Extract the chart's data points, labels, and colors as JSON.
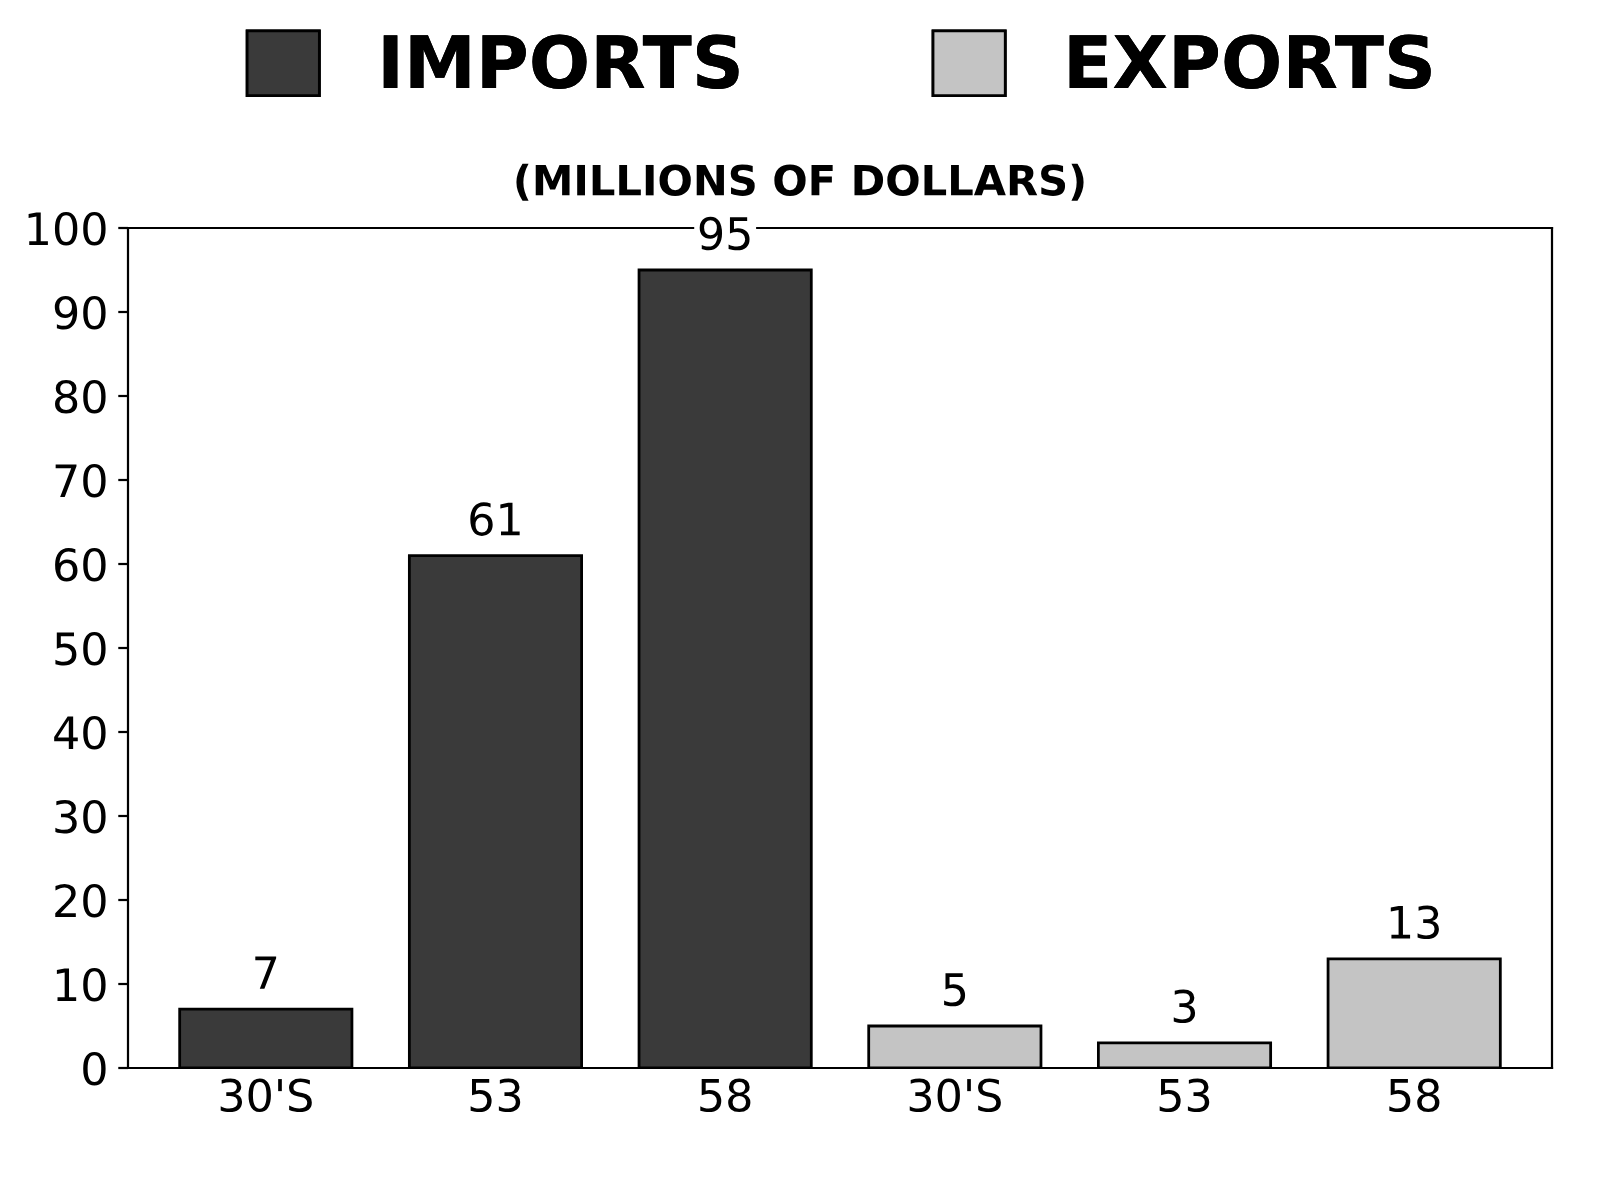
{
  "chart_data": {
    "type": "bar",
    "subtitle": "(MILLIONS OF DOLLARS)",
    "categories": [
      "30'S",
      "53",
      "58",
      "30'S",
      "53",
      "58"
    ],
    "series": [
      {
        "name": "IMPORTS",
        "color": "#3a3a3a",
        "values": [
          7,
          61,
          95,
          null,
          null,
          null
        ]
      },
      {
        "name": "EXPORTS",
        "color": "#c4c4c4",
        "values": [
          null,
          null,
          null,
          5,
          3,
          13
        ]
      }
    ],
    "ylim": [
      0,
      100
    ],
    "yticks": [
      0,
      10,
      20,
      30,
      40,
      50,
      60,
      70,
      80,
      90,
      100
    ],
    "grid": false,
    "legend": "top",
    "data_labels": true
  }
}
